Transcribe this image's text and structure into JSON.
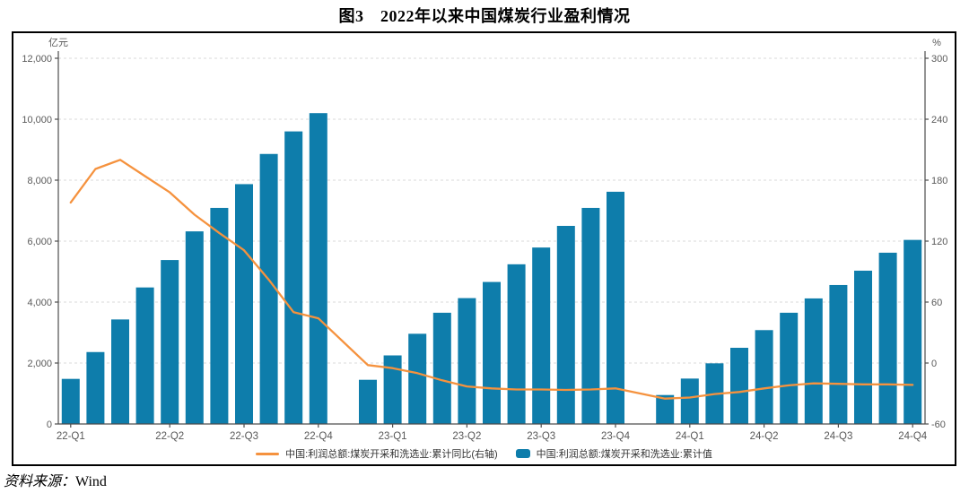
{
  "title": "图3　2022年以来中国煤炭行业盈利情况",
  "source_note": {
    "label": "资料来源：",
    "value": "Wind"
  },
  "colors": {
    "bar": "#0E7DAB",
    "line": "#F5923E",
    "grid": "#D9D9D9",
    "axis": "#4D4D4D",
    "tick_text": "#595959",
    "legend_text": "#333333",
    "frame_border": "#000000"
  },
  "chart_data": {
    "type": "bar+line",
    "title": "图3　2022年以来中国煤炭行业盈利情况",
    "grid": "horizontal dashed",
    "legend_position": "bottom",
    "n_slots": 35,
    "x_tick_labels": [
      "22-Q1",
      "22-Q2",
      "22-Q3",
      "22-Q4",
      "23-Q1",
      "23-Q2",
      "23-Q3",
      "23-Q4",
      "24-Q1",
      "24-Q2",
      "24-Q3",
      "24-Q4"
    ],
    "x_tick_slots": [
      0,
      4,
      7,
      10,
      13,
      16,
      19,
      22,
      25,
      28,
      31,
      34
    ],
    "left_axis": {
      "unit": "亿元",
      "min": 0,
      "max": 12000,
      "tick_values": [
        0,
        2000,
        4000,
        6000,
        8000,
        10000,
        12000
      ],
      "tick_labels": [
        "0",
        "2,000",
        "4,000",
        "6,000",
        "8,000",
        "10,000",
        "12,000"
      ]
    },
    "right_axis": {
      "unit": "%",
      "min": -60,
      "max": 300,
      "tick_values": [
        -60,
        0,
        60,
        120,
        180,
        240,
        300
      ],
      "tick_labels": [
        "-60",
        "0",
        "60",
        "120",
        "180",
        "240",
        "300"
      ]
    },
    "bar_series": {
      "name": "中国:利润总额:煤炭开采和洗选业:累计值",
      "axis": "left",
      "slots": [
        0,
        1,
        2,
        3,
        4,
        5,
        6,
        7,
        8,
        9,
        10,
        12,
        13,
        14,
        15,
        16,
        17,
        18,
        19,
        20,
        21,
        22,
        24,
        25,
        26,
        27,
        28,
        29,
        30,
        31,
        32,
        33,
        34
      ],
      "values": [
        1480,
        2360,
        3430,
        4480,
        5380,
        6320,
        7090,
        7870,
        8860,
        9600,
        10200,
        1450,
        2250,
        2960,
        3650,
        4130,
        4660,
        5240,
        5790,
        6500,
        7090,
        7620,
        950,
        1490,
        1990,
        2500,
        3080,
        3650,
        4120,
        4560,
        5030,
        5620,
        6040
      ]
    },
    "line_series": {
      "name": "中国:利润总额:煤炭开采和洗选业:累计同比(右轴)",
      "axis": "right",
      "slots": [
        0,
        1,
        2,
        3,
        4,
        5,
        6,
        7,
        8,
        9,
        10,
        12,
        13,
        14,
        15,
        16,
        17,
        18,
        19,
        20,
        21,
        22,
        24,
        25,
        26,
        27,
        28,
        29,
        30,
        31,
        32,
        33,
        34
      ],
      "values": [
        158,
        191,
        200,
        184,
        168,
        146,
        128,
        111,
        82,
        50,
        44,
        -2,
        -5,
        -10,
        -17,
        -23,
        -25,
        -26,
        -26,
        -26.5,
        -26,
        -25,
        -35,
        -34,
        -30.5,
        -28.5,
        -25,
        -22,
        -20,
        -20.5,
        -21,
        -21,
        -21.5
      ]
    }
  }
}
